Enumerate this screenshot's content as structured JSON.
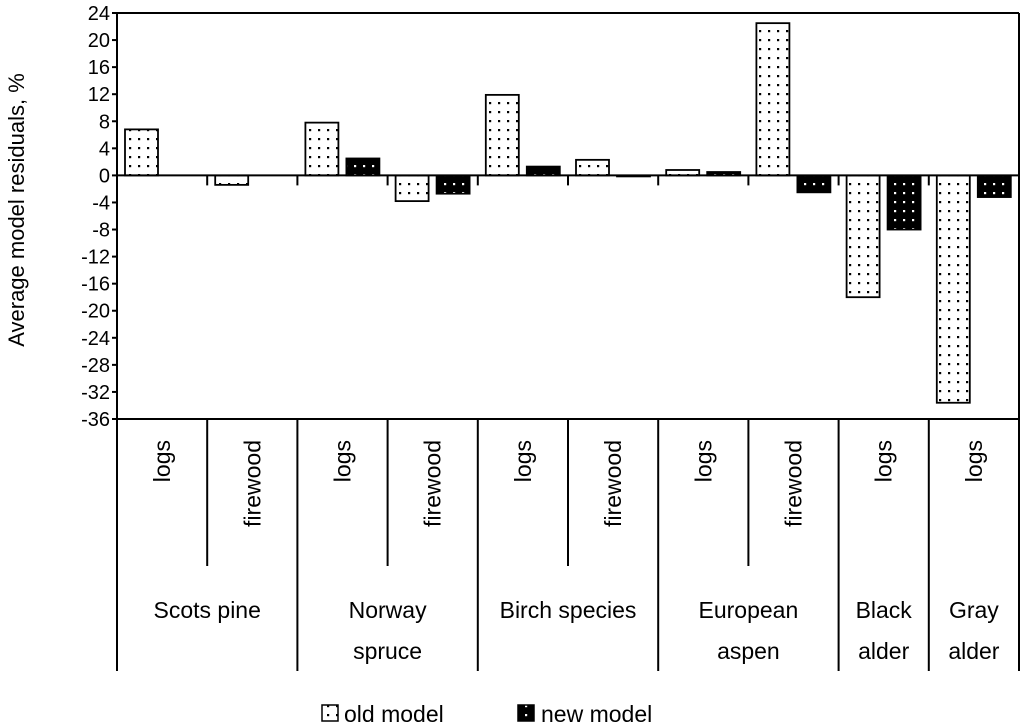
{
  "chart_data": {
    "type": "bar",
    "title": "",
    "ylabel": "Average model residuals, %",
    "xlabel": "",
    "ylim": [
      -36,
      24
    ],
    "ytick_step": 4,
    "grid": false,
    "legend_position": "bottom",
    "groups": [
      {
        "label": "Scots pine",
        "lines": [
          "Scots pine"
        ],
        "categories": [
          "logs",
          "firewood"
        ]
      },
      {
        "label": "Norway spruce",
        "lines": [
          "Norway",
          "spruce"
        ],
        "categories": [
          "logs",
          "firewood"
        ]
      },
      {
        "label": "Birch species",
        "lines": [
          "Birch species"
        ],
        "categories": [
          "logs",
          "firewood"
        ]
      },
      {
        "label": "European aspen",
        "lines": [
          "European",
          "aspen"
        ],
        "categories": [
          "logs",
          "firewood"
        ]
      },
      {
        "label": "Black alder",
        "lines": [
          "Black",
          "alder"
        ],
        "categories": [
          "logs"
        ]
      },
      {
        "label": "Gray alder",
        "lines": [
          "Gray",
          "alder"
        ],
        "categories": [
          "logs"
        ]
      }
    ],
    "categories": [
      "Scots pine / logs",
      "Scots pine / firewood",
      "Norway spruce / logs",
      "Norway spruce / firewood",
      "Birch species / logs",
      "Birch species / firewood",
      "European aspen / logs",
      "European aspen / firewood",
      "Black alder / logs",
      "Gray alder / logs"
    ],
    "series": [
      {
        "name": "old model",
        "pattern": "white with black dots",
        "values": [
          6.8,
          -1.4,
          7.8,
          -3.8,
          11.9,
          2.3,
          0.8,
          22.5,
          -18.0,
          -33.6
        ]
      },
      {
        "name": "new model",
        "pattern": "black with white dots",
        "values": [
          null,
          null,
          2.5,
          -2.7,
          1.3,
          -0.1,
          0.5,
          -2.5,
          -8.0,
          -3.2
        ]
      }
    ],
    "colors": {
      "old": "#ffffff",
      "new": "#000000",
      "axis": "#000000"
    }
  }
}
